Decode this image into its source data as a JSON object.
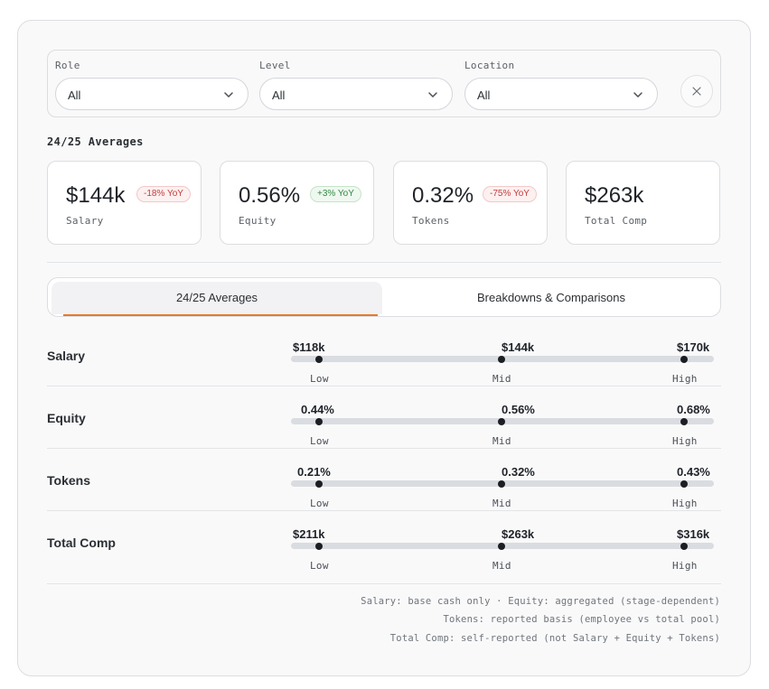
{
  "filters": {
    "role": {
      "label": "Role",
      "value": "All"
    },
    "level": {
      "label": "Level",
      "value": "All"
    },
    "location": {
      "label": "Location",
      "value": "All"
    }
  },
  "section_title": "24/25 Averages",
  "kpis": [
    {
      "value": "$144k",
      "label": "Salary",
      "badge": "-18% YoY",
      "trend": "negative"
    },
    {
      "value": "0.56%",
      "label": "Equity",
      "badge": "+3% YoY",
      "trend": "positive"
    },
    {
      "value": "0.32%",
      "label": "Tokens",
      "badge": "-75% YoY",
      "trend": "negative"
    },
    {
      "value": "$263k",
      "label": "Total Comp"
    }
  ],
  "tabs": [
    {
      "label": "24/25 Averages",
      "active": true
    },
    {
      "label": "Breakdowns & Comparisons",
      "active": false
    }
  ],
  "ranges": [
    {
      "label": "Salary",
      "low": "$118k",
      "mid": "$144k",
      "high": "$170k"
    },
    {
      "label": "Equity",
      "low": "0.44%",
      "mid": "0.56%",
      "high": "0.68%"
    },
    {
      "label": "Tokens",
      "low": "0.21%",
      "mid": "0.32%",
      "high": "0.43%"
    },
    {
      "label": "Total Comp",
      "low": "$211k",
      "mid": "$263k",
      "high": "$316k"
    }
  ],
  "ticks": {
    "low": "Low",
    "mid": "Mid",
    "high": "High"
  },
  "notes": [
    "Salary: base cash only · Equity: aggregated (stage-dependent)",
    "Tokens: reported basis (employee vs total pool)",
    "Total Comp: self-reported (not Salary + Equity + Tokens)"
  ],
  "colors": {
    "accent": "#e8792b",
    "negative": "#c43c3c",
    "positive": "#2f8a40"
  },
  "icons": {
    "dropdown": "chevron-down-icon",
    "clear": "close-icon"
  }
}
